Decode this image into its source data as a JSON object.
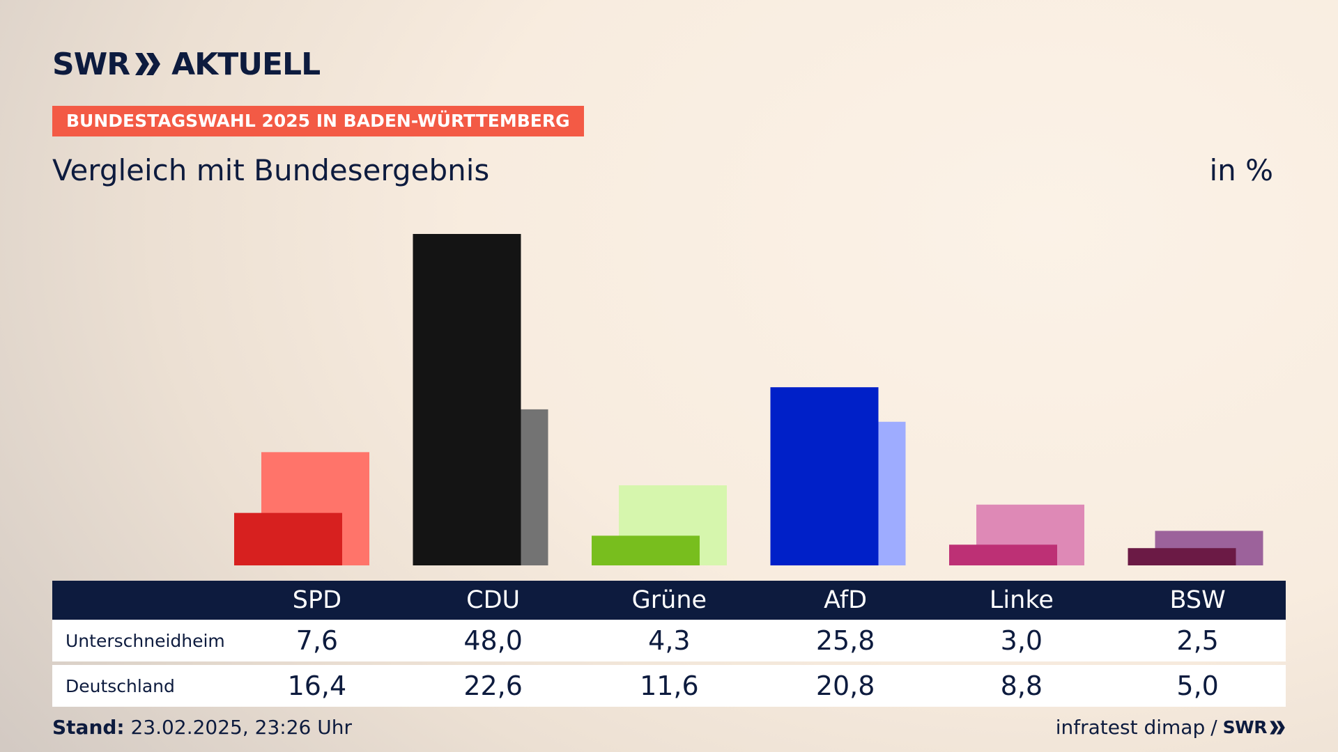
{
  "header": {
    "logo_left": "SWR",
    "logo_right": "AKTUELL",
    "badge": "BUNDESTAGSWAHL 2025 IN BADEN-WÜRTTEMBERG",
    "title": "Vergleich mit Bundesergebnis",
    "unit": "in %"
  },
  "colors": {
    "navy": "#0d1b3e",
    "badge": "#f35a45"
  },
  "chart_data": {
    "type": "bar",
    "title": "Vergleich mit Bundesergebnis",
    "ylabel": "in %",
    "ylim": [
      0,
      48
    ],
    "grid": false,
    "legend": "none",
    "categories": [
      "SPD",
      "CDU",
      "Grüne",
      "AfD",
      "Linke",
      "BSW"
    ],
    "series": [
      {
        "name": "Unterschneidheim",
        "values": [
          7.6,
          48.0,
          4.3,
          25.8,
          3.0,
          2.5
        ],
        "colors": [
          "#d7201f",
          "#141414",
          "#78be1e",
          "#0020c8",
          "#bd3075",
          "#6b1a45"
        ]
      },
      {
        "name": "Deutschland",
        "values": [
          16.4,
          22.6,
          11.6,
          20.8,
          8.8,
          5.0
        ],
        "colors": [
          "#ff746a",
          "#737373",
          "#d6f6ad",
          "#9eacff",
          "#de89b6",
          "#9c629b"
        ]
      }
    ],
    "table_rows": [
      {
        "label": "Unterschneidheim",
        "values": [
          "7,6",
          "48,0",
          "4,3",
          "25,8",
          "3,0",
          "2,5"
        ]
      },
      {
        "label": "Deutschland",
        "values": [
          "16,4",
          "22,6",
          "11,6",
          "20,8",
          "8,8",
          "5,0"
        ]
      }
    ]
  },
  "footer": {
    "stand_label": "Stand:",
    "stand_value": "23.02.2025, 23:26 Uhr",
    "source": "infratest dimap",
    "separator": "/",
    "source_logo": "SWR"
  }
}
